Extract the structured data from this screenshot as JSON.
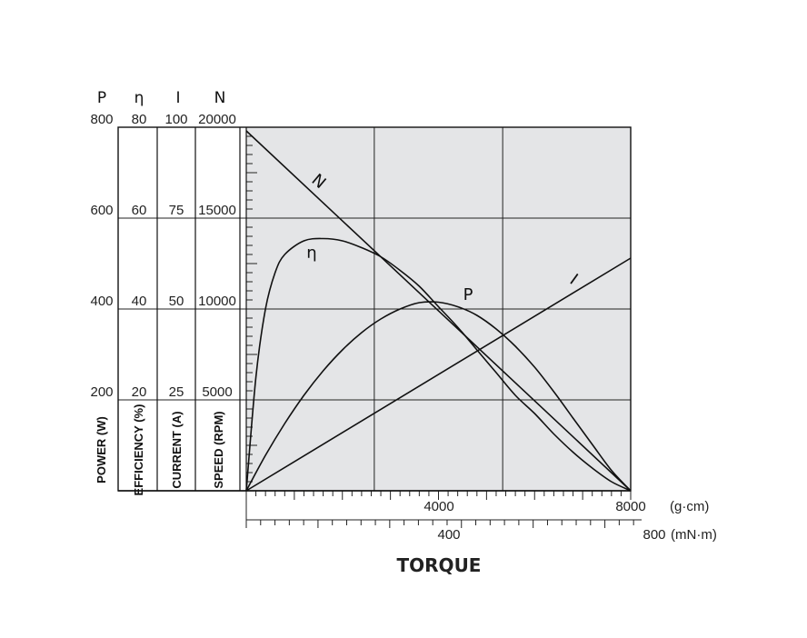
{
  "chart_data": {
    "type": "line",
    "xlabel": "TORQUE",
    "x_units": [
      "(g·cm)",
      "(mN·m)"
    ],
    "x_ticks_gcm": [
      "4000",
      "8000"
    ],
    "x_ticks_mNm": [
      "400",
      "800"
    ],
    "xlim_gcm": [
      0,
      8000
    ],
    "grid": true,
    "axes": [
      {
        "symbol": "P",
        "label": "POWER (W)",
        "ticks": [
          "800",
          "600",
          "400",
          "200"
        ],
        "range": [
          0,
          800
        ]
      },
      {
        "symbol": "η",
        "label": "EFFICIENCY (%)",
        "ticks": [
          "80",
          "60",
          "40",
          "20"
        ],
        "range": [
          0,
          80
        ]
      },
      {
        "symbol": "I",
        "label": "CURRENT (A)",
        "ticks": [
          "100",
          "75",
          "50",
          "25"
        ],
        "range": [
          0,
          100
        ]
      },
      {
        "symbol": "N",
        "label": "SPEED (RPM)",
        "ticks": [
          "20000",
          "15000",
          "10000",
          "5000"
        ],
        "range": [
          0,
          20000
        ]
      }
    ],
    "series": [
      {
        "name": "N",
        "axis": "N",
        "x": [
          0,
          8000
        ],
        "y": [
          19800,
          0
        ]
      },
      {
        "name": "η",
        "axis": "η",
        "x": [
          0,
          200,
          400,
          600,
          800,
          1200,
          1600,
          2000,
          2400,
          2800,
          3200,
          3600,
          4000,
          4400,
          4800,
          5200,
          5600,
          6000,
          6400,
          6800,
          7200,
          7600,
          8000
        ],
        "y": [
          0,
          25,
          40,
          48,
          52,
          55,
          55.5,
          55,
          53.5,
          51.5,
          48.5,
          45,
          40.5,
          36,
          31,
          26,
          21,
          17,
          12.5,
          8.5,
          5,
          2,
          0
        ]
      },
      {
        "name": "P",
        "axis": "P",
        "x": [
          0,
          400,
          800,
          1200,
          1600,
          2000,
          2400,
          2800,
          3200,
          3600,
          4000,
          4400,
          4800,
          5200,
          5600,
          6000,
          6400,
          6800,
          7200,
          7600,
          8000
        ],
        "y": [
          0,
          78,
          148,
          210,
          264,
          310,
          348,
          378,
          400,
          414,
          415,
          405,
          386,
          356,
          318,
          272,
          218,
          160,
          102,
          45,
          0
        ]
      },
      {
        "name": "I",
        "axis": "I",
        "x": [
          0,
          8000
        ],
        "y": [
          0,
          64
        ]
      }
    ]
  }
}
